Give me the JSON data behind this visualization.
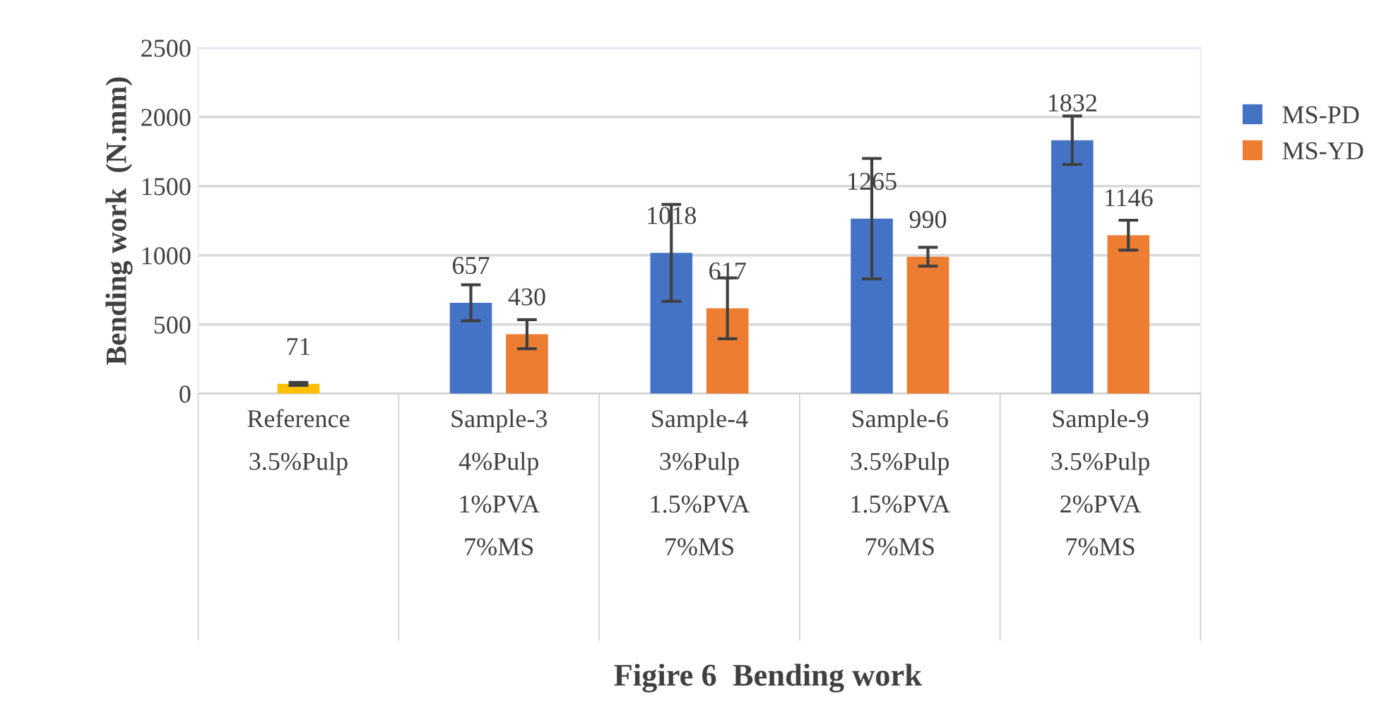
{
  "chart_data": {
    "type": "bar",
    "title": "Figire 6  Bending work",
    "ylabel": "Bending work  (N.mm)",
    "categories": [
      "Reference\n\n3.5%Pulp",
      "Sample-3\n\n4%Pulp\n\n1%PVA\n\n7%MS",
      "Sample-4\n\n3%Pulp\n\n1.5%PVA\n\n7%MS",
      "Sample-6\n\n3.5%Pulp\n\n1.5%PVA\n\n7%MS",
      "Sample-9\n\n3.5%Pulp\n\n2%PVA\n\n7%MS"
    ],
    "series": [
      {
        "name": "MS-PD",
        "color": "#4472c4",
        "values": [
          null,
          657,
          1018,
          1265,
          1832
        ],
        "errors": [
          null,
          130,
          350,
          435,
          175
        ]
      },
      {
        "name": "MS-YD",
        "color": "#ed7d31",
        "values": [
          null,
          430,
          617,
          990,
          1146
        ],
        "errors": [
          null,
          105,
          220,
          68,
          108
        ]
      },
      {
        "color": "#ffc000",
        "values": [
          71,
          null,
          null,
          null,
          null
        ],
        "errors": [
          10,
          null,
          null,
          null,
          null
        ]
      }
    ],
    "ylim": [
      0,
      2500
    ],
    "yticks": [
      0,
      500,
      1000,
      1500,
      2000,
      2500
    ],
    "grid": "y",
    "legend": "right",
    "data_labels": true
  }
}
